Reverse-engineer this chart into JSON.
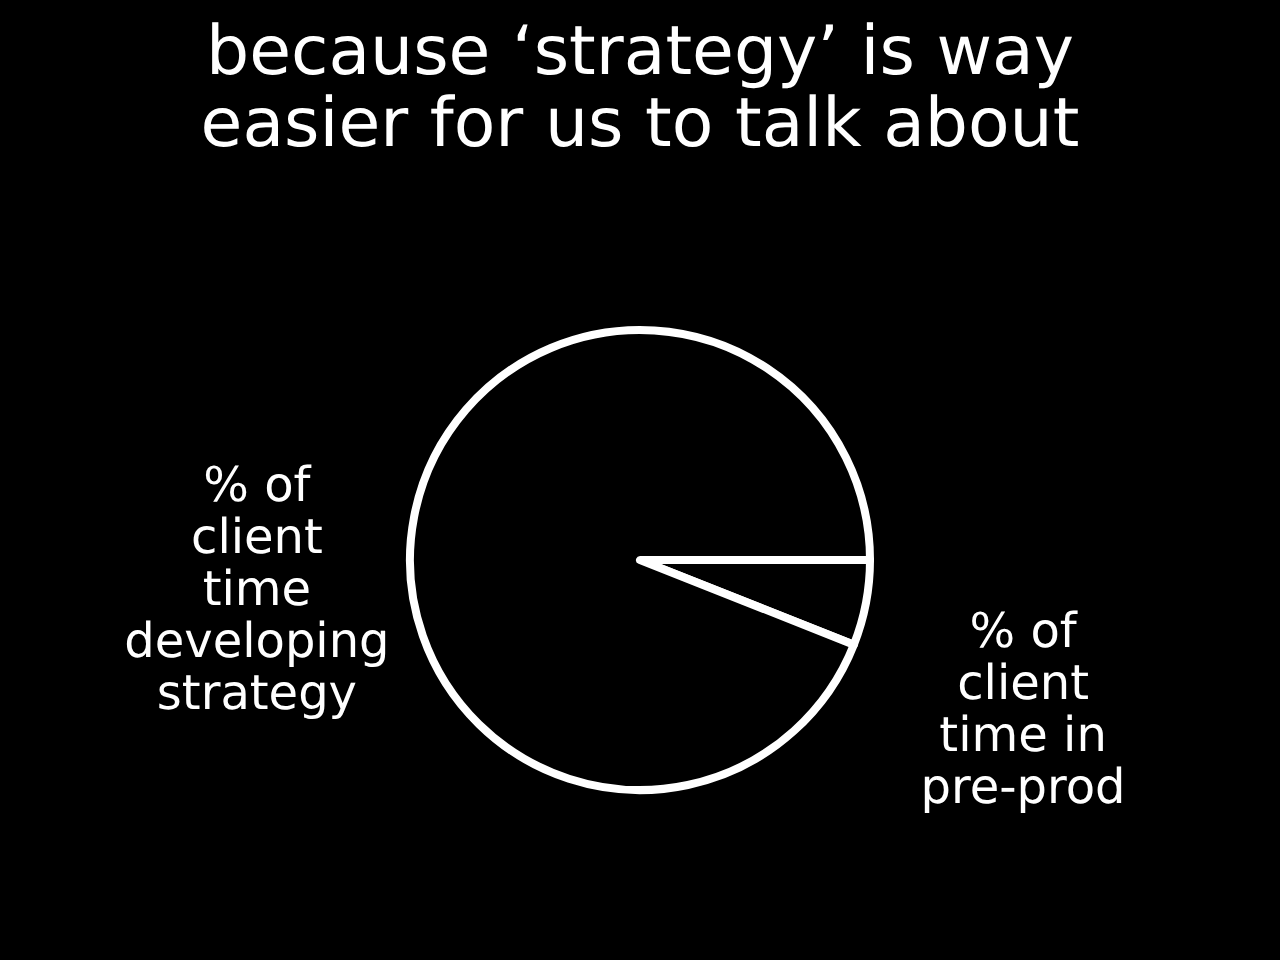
{
  "chart_data": {
    "type": "pie",
    "title": "because ‘strategy’ is way easier for us to talk about",
    "categories": [
      "% of client time in pre-prod",
      "% of client time developing strategy"
    ],
    "values": [
      6,
      94
    ],
    "colors": [
      "#000000",
      "#000000"
    ],
    "legend": false
  }
}
